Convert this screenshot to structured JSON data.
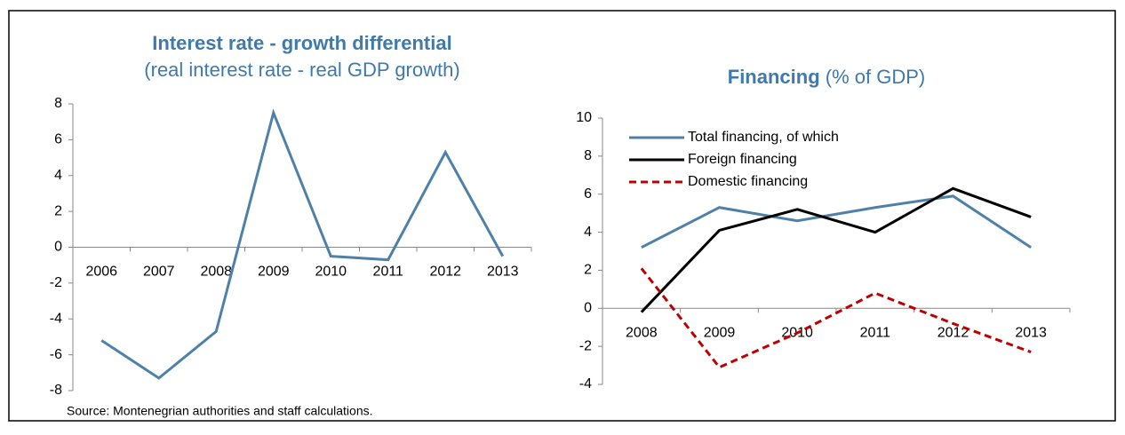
{
  "source": "Source: Montenegrian authorities and staff calculations.",
  "chart_data": [
    {
      "type": "line",
      "title": "Interest rate - growth differential",
      "subtitle": "(real interest rate - real GDP growth)",
      "categories": [
        "2006",
        "2007",
        "2008",
        "2009",
        "2010",
        "2011",
        "2012",
        "2013"
      ],
      "series": [
        {
          "name": null,
          "color": "#4f81a8",
          "values": [
            -5.2,
            -7.3,
            -4.7,
            7.5,
            -0.5,
            -0.7,
            5.3,
            -0.5
          ]
        }
      ],
      "ylim": [
        -8,
        8
      ],
      "yticks": [
        -8,
        -6,
        -4,
        -2,
        0,
        2,
        4,
        6,
        8
      ]
    },
    {
      "type": "line",
      "title": "Financing",
      "subtitle": "(% of GDP)",
      "categories": [
        "2008",
        "2009",
        "2010",
        "2011",
        "2012",
        "2013"
      ],
      "series": [
        {
          "name": "Total financing, of which",
          "color": "#4f81a8",
          "values": [
            3.2,
            5.3,
            4.6,
            5.3,
            5.9,
            3.2
          ]
        },
        {
          "name": "Foreign financing",
          "color": "#000000",
          "values": [
            -0.2,
            4.1,
            5.2,
            4.0,
            6.3,
            4.8
          ]
        },
        {
          "name": "Domestic financing",
          "color": "#c00000",
          "dashed": true,
          "values": [
            2.1,
            -3.1,
            -1.3,
            0.8,
            -0.8,
            -2.3
          ]
        }
      ],
      "ylim": [
        -4,
        10
      ],
      "yticks": [
        -4,
        -2,
        0,
        2,
        4,
        6,
        8,
        10
      ],
      "legend": "top-left"
    }
  ]
}
